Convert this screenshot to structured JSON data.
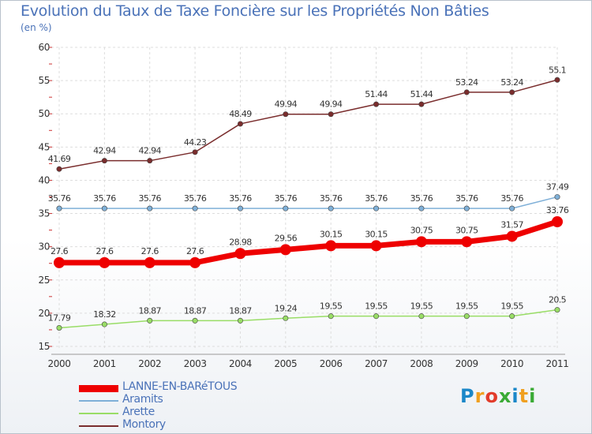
{
  "title": "Evolution du Taux de Taxe Foncière sur les Propriétés Non Bâties",
  "subtitle": "(en %)",
  "logo": {
    "text": "Proxiti",
    "colors": [
      "#1a87c8",
      "#f0a020",
      "#e23c2a",
      "#3aaa35",
      "#1a87c8",
      "#f0a020",
      "#3aaa35"
    ]
  },
  "chart_data": {
    "type": "line",
    "x": [
      "2000",
      "2001",
      "2002",
      "2003",
      "2004",
      "2005",
      "2006",
      "2007",
      "2008",
      "2009",
      "2010",
      "2011"
    ],
    "ylim": [
      15,
      60
    ],
    "yticks": [
      15,
      20,
      25,
      30,
      35,
      40,
      45,
      50,
      55,
      60
    ],
    "grid": true,
    "legend_position": "bottom-left",
    "series": [
      {
        "name": "LANNE-EN-BARéTOUS",
        "color": "#ee0000",
        "width": 7,
        "marker": 7,
        "values": [
          27.6,
          27.6,
          27.6,
          27.6,
          28.98,
          29.56,
          30.15,
          30.15,
          30.75,
          30.75,
          31.57,
          33.76
        ],
        "labels": [
          "27.6",
          "27.6",
          "27.6",
          "27.6",
          "28.98",
          "29.56",
          "30.15",
          "30.15",
          "30.75",
          "30.75",
          "31.57",
          "33.76"
        ]
      },
      {
        "name": "Aramits",
        "color": "#7fb0d8",
        "width": 1.5,
        "marker": 3.2,
        "values": [
          35.76,
          35.76,
          35.76,
          35.76,
          35.76,
          35.76,
          35.76,
          35.76,
          35.76,
          35.76,
          35.76,
          37.49
        ],
        "labels": [
          "35.76",
          "35.76",
          "35.76",
          "35.76",
          "35.76",
          "35.76",
          "35.76",
          "35.76",
          "35.76",
          "35.76",
          "35.76",
          "37.49"
        ]
      },
      {
        "name": "Arette",
        "color": "#99dd66",
        "width": 1.5,
        "marker": 3.2,
        "values": [
          17.79,
          18.32,
          18.87,
          18.87,
          18.87,
          19.24,
          19.55,
          19.55,
          19.55,
          19.55,
          19.55,
          20.5
        ],
        "labels": [
          "17.79",
          "18.32",
          "18.87",
          "18.87",
          "18.87",
          "19.24",
          "19.55",
          "19.55",
          "19.55",
          "19.55",
          "19.55",
          "20.5"
        ]
      },
      {
        "name": "Montory",
        "color": "#7a2d2d",
        "width": 1.5,
        "marker": 3.2,
        "values": [
          41.69,
          42.94,
          42.94,
          44.23,
          48.49,
          49.94,
          49.94,
          51.44,
          51.44,
          53.24,
          53.24,
          55.1
        ],
        "labels": [
          "41.69",
          "42.94",
          "42.94",
          "44.23",
          "48.49",
          "49.94",
          "49.94",
          "51.44",
          "51.44",
          "53.24",
          "53.24",
          "55.1"
        ]
      }
    ]
  }
}
